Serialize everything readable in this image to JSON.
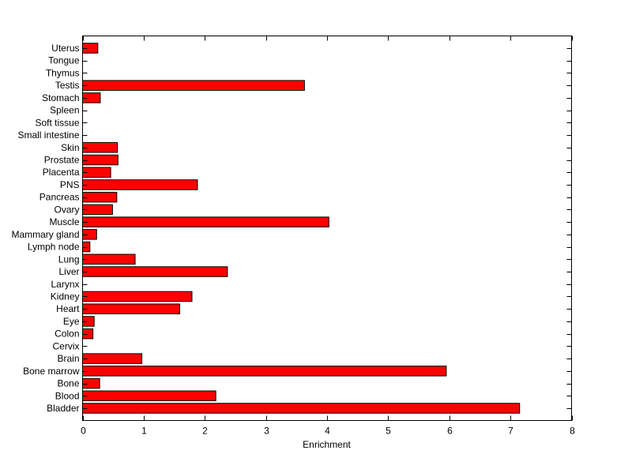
{
  "chart_data": {
    "type": "bar",
    "orientation": "horizontal",
    "title": "",
    "xlabel": "Enrichment",
    "ylabel": "",
    "xlim": [
      0,
      8
    ],
    "xticks": [
      0,
      1,
      2,
      3,
      4,
      5,
      6,
      7,
      8
    ],
    "xtick_labels": [
      "0",
      "1",
      "2",
      "3",
      "4",
      "5",
      "6",
      "7",
      "8"
    ],
    "grid": false,
    "legend": "none",
    "bar_color": "#ff0000",
    "edge_color": "#000000",
    "categories": [
      "Bladder",
      "Blood",
      "Bone",
      "Bone marrow",
      "Brain",
      "Cervix",
      "Colon",
      "Eye",
      "Heart",
      "Kidney",
      "Larynx",
      "Liver",
      "Lung",
      "Lymph node",
      "Mammary gland",
      "Muscle",
      "Ovary",
      "Pancreas",
      "PNS",
      "Placenta",
      "Prostate",
      "Skin",
      "Small intestine",
      "Soft tissue",
      "Spleen",
      "Stomach",
      "Testis",
      "Thymus",
      "Tongue",
      "Uterus"
    ],
    "values": [
      7.15,
      2.18,
      0.28,
      5.95,
      0.97,
      0,
      0.17,
      0.19,
      1.59,
      1.79,
      0,
      2.37,
      0.86,
      0.12,
      0.23,
      4.03,
      0.49,
      0.56,
      1.88,
      0.46,
      0.58,
      0.57,
      0,
      0,
      0,
      0.29,
      3.63,
      0,
      0,
      0.25
    ]
  }
}
